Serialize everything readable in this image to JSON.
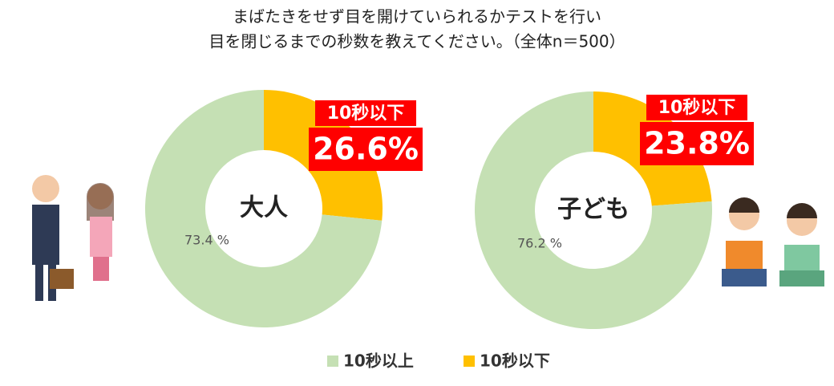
{
  "title": [
    "まばたきをせず目を開けていられるかテストを行い",
    "目を閉じるまでの秒数を教えてください。（全体n＝500）"
  ],
  "chart_data": [
    {
      "type": "pie",
      "name": "大人",
      "categories": [
        "10秒以上",
        "10秒以下"
      ],
      "values": [
        73.4,
        26.6
      ],
      "value_labels": [
        "73.4 %",
        "26.6%"
      ],
      "colors": [
        "#c5e0b4",
        "#ffc000"
      ]
    },
    {
      "type": "pie",
      "name": "子ども",
      "categories": [
        "10秒以上",
        "10秒以下"
      ],
      "values": [
        76.2,
        23.8
      ],
      "value_labels": [
        "76.2 %",
        "23.8%"
      ],
      "colors": [
        "#c5e0b4",
        "#ffc000"
      ]
    }
  ]
}
